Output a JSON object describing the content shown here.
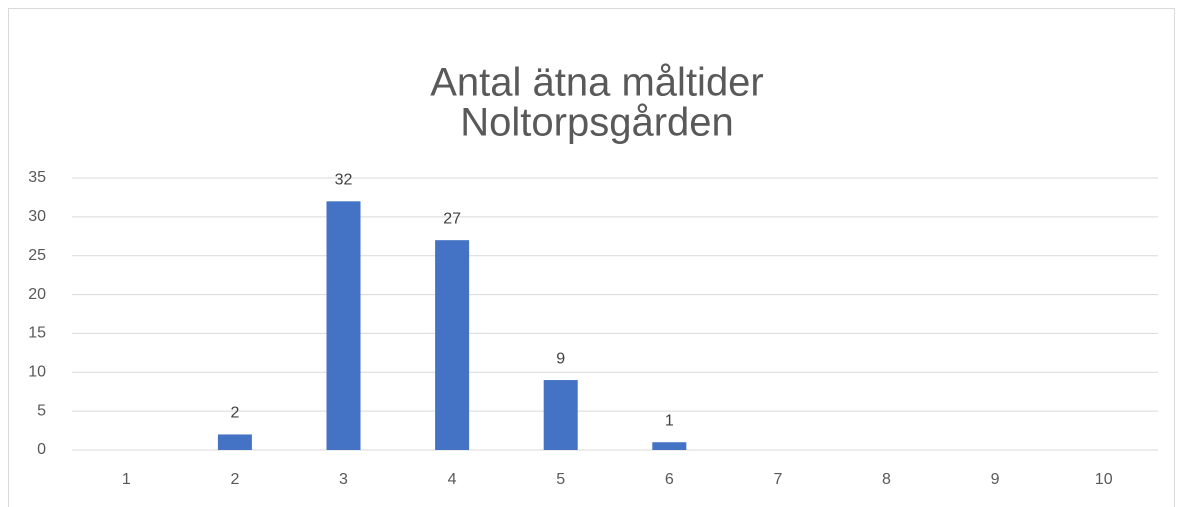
{
  "chart_data": {
    "type": "bar",
    "title": [
      "Antal ätna måltider",
      "Noltorpsgården"
    ],
    "categories": [
      "1",
      "2",
      "3",
      "4",
      "5",
      "6",
      "7",
      "8",
      "9",
      "10"
    ],
    "values": [
      null,
      2,
      32,
      27,
      9,
      1,
      null,
      null,
      null,
      null
    ],
    "color": "#4472c4",
    "ylim": [
      0,
      35
    ],
    "yticks": [
      0,
      5,
      10,
      15,
      20,
      25,
      30,
      35
    ],
    "grid": true
  }
}
